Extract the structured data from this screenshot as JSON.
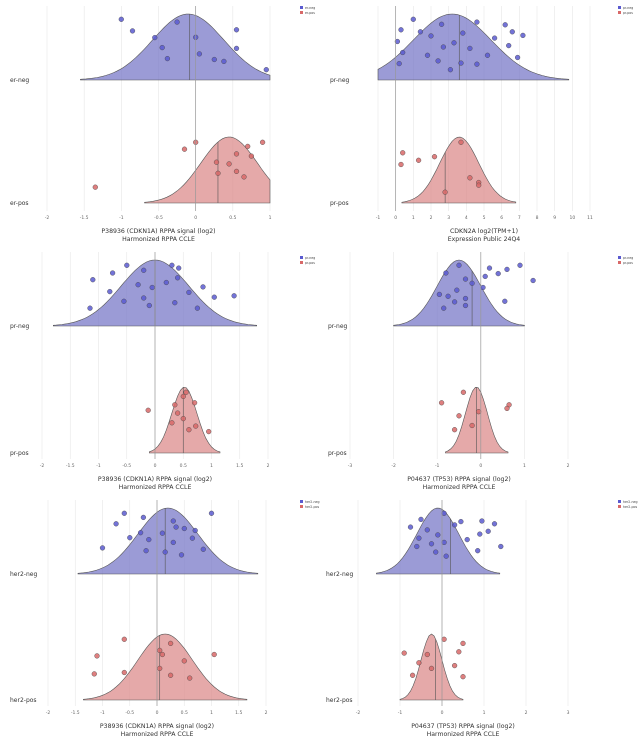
{
  "colors": {
    "neg": "#7a7ac8",
    "pos": "#dc8c8c",
    "neg_point": "#5a5ad0",
    "pos_point": "#d86868",
    "outline": "#555555",
    "grid": "#e6e6e6",
    "zero_line": "#999999"
  },
  "chart_data": [
    {
      "type": "violin",
      "xlabel": "P38936 (CDKN1A) RPPA signal (log2)",
      "subtitle": "Harmonized RPPA CCLE",
      "xlim": [
        -2,
        1
      ],
      "ticks": [
        -2,
        -1.5,
        -1,
        -0.5,
        0,
        0.5,
        1
      ],
      "tick_labels": [
        "-2",
        "-1.5",
        "-1",
        "-0.5",
        "0",
        "0.5",
        "1"
      ],
      "zero": 0,
      "legend": [
        "er-neg",
        "er-pos"
      ],
      "groups": [
        {
          "label": "er-neg",
          "kind": "neg",
          "mode": -0.1,
          "width": 0.48,
          "median": -0.08,
          "points": [
            [
              -1.0,
              1.0
            ],
            [
              -0.25,
              0.9
            ],
            [
              0.55,
              0.62
            ],
            [
              -0.85,
              0.58
            ],
            [
              -0.55,
              0.34
            ],
            [
              0.0,
              0.35
            ],
            [
              0.55,
              -0.05
            ],
            [
              -0.45,
              -0.02
            ],
            [
              0.05,
              -0.25
            ],
            [
              -0.38,
              -0.42
            ],
            [
              0.25,
              -0.45
            ],
            [
              0.38,
              -0.52
            ],
            [
              0.95,
              -0.82
            ]
          ]
        },
        {
          "label": "er-pos",
          "kind": "pos",
          "mode": 0.45,
          "width": 0.38,
          "median": 0.3,
          "points": [
            [
              0.0,
              1.0
            ],
            [
              0.9,
              1.0
            ],
            [
              0.7,
              0.85
            ],
            [
              -0.15,
              0.75
            ],
            [
              0.55,
              0.58
            ],
            [
              0.75,
              0.5
            ],
            [
              0.28,
              0.28
            ],
            [
              0.45,
              0.22
            ],
            [
              0.55,
              -0.05
            ],
            [
              0.3,
              -0.12
            ],
            [
              0.65,
              -0.25
            ],
            [
              -1.35,
              -0.62
            ]
          ]
        }
      ]
    },
    {
      "type": "violin",
      "xlabel": "CDKN2A log2(TPM+1)",
      "subtitle": "Expression Public 24Q4",
      "xlim": [
        -1,
        11
      ],
      "ticks": [
        -1,
        0,
        1,
        2,
        3,
        4,
        5,
        6,
        7,
        8,
        9,
        10,
        11
      ],
      "tick_labels": [
        "-1",
        "0",
        "1",
        "2",
        "3",
        "4",
        "5",
        "6",
        "7",
        "8",
        "9",
        "10",
        "11"
      ],
      "zero": 0,
      "legend": [
        "pr-neg",
        "pr-pos"
      ],
      "groups": [
        {
          "label": "pr-neg",
          "kind": "neg",
          "mode": 3.2,
          "width": 2.2,
          "median": 3.6,
          "points": [
            [
              1.0,
              1.0
            ],
            [
              2.6,
              0.82
            ],
            [
              4.6,
              0.9
            ],
            [
              6.2,
              0.8
            ],
            [
              0.3,
              0.62
            ],
            [
              1.4,
              0.55
            ],
            [
              3.8,
              0.5
            ],
            [
              6.6,
              0.55
            ],
            [
              7.2,
              0.42
            ],
            [
              2.0,
              0.4
            ],
            [
              5.6,
              0.32
            ],
            [
              0.1,
              0.2
            ],
            [
              3.3,
              0.15
            ],
            [
              6.4,
              0.05
            ],
            [
              2.7,
              0.0
            ],
            [
              4.2,
              -0.05
            ],
            [
              0.4,
              -0.2
            ],
            [
              1.8,
              -0.3
            ],
            [
              5.2,
              -0.3
            ],
            [
              6.9,
              -0.38
            ],
            [
              2.4,
              -0.5
            ],
            [
              3.7,
              -0.58
            ],
            [
              4.6,
              -0.62
            ],
            [
              0.2,
              -0.6
            ],
            [
              3.1,
              -0.82
            ]
          ]
        },
        {
          "label": "pr-pos",
          "kind": "pos",
          "mode": 3.6,
          "width": 1.1,
          "median": 2.8,
          "points": [
            [
              3.7,
              1.0
            ],
            [
              0.4,
              0.62
            ],
            [
              2.2,
              0.48
            ],
            [
              1.3,
              0.35
            ],
            [
              0.3,
              0.2
            ],
            [
              4.2,
              -0.28
            ],
            [
              4.7,
              -0.45
            ],
            [
              4.7,
              -0.55
            ],
            [
              2.8,
              -0.8
            ]
          ]
        }
      ]
    },
    {
      "type": "violin",
      "xlabel": "P38936 (CDKN1A) RPPA signal (log2)",
      "subtitle": "Harmonized RPPA CCLE",
      "xlim": [
        -2,
        2
      ],
      "ticks": [
        -2,
        -1.5,
        -1,
        -0.5,
        0,
        0.5,
        1,
        1.5,
        2
      ],
      "tick_labels": [
        "-2",
        "-1.5",
        "-1",
        "-0.5",
        "0",
        "0.5",
        "1",
        "1.5",
        "2"
      ],
      "zero": 0,
      "legend": [
        "pr-neg",
        "pr-pos"
      ],
      "groups": [
        {
          "label": "pr-neg",
          "kind": "neg",
          "mode": 0.0,
          "width": 0.6,
          "median": 0.0,
          "points": [
            [
              -0.5,
              1.0
            ],
            [
              0.3,
              1.0
            ],
            [
              0.42,
              0.9
            ],
            [
              -0.2,
              0.82
            ],
            [
              -0.75,
              0.72
            ],
            [
              0.4,
              0.55
            ],
            [
              -1.1,
              0.48
            ],
            [
              0.2,
              0.38
            ],
            [
              -0.3,
              0.3
            ],
            [
              0.85,
              0.22
            ],
            [
              -0.05,
              0.2
            ],
            [
              -0.8,
              0.05
            ],
            [
              0.6,
              0.02
            ],
            [
              1.4,
              -0.1
            ],
            [
              1.05,
              -0.15
            ],
            [
              -0.2,
              -0.18
            ],
            [
              -0.55,
              -0.3
            ],
            [
              0.35,
              -0.35
            ],
            [
              -0.1,
              -0.45
            ],
            [
              -1.15,
              -0.55
            ],
            [
              0.75,
              -0.55
            ]
          ]
        },
        {
          "label": "pr-pos",
          "kind": "pos",
          "mode": 0.52,
          "width": 0.22,
          "median": 0.5,
          "points": [
            [
              0.55,
              1.0
            ],
            [
              0.5,
              0.85
            ],
            [
              0.7,
              0.62
            ],
            [
              0.35,
              0.55
            ],
            [
              -0.12,
              0.35
            ],
            [
              0.4,
              0.25
            ],
            [
              0.5,
              0.05
            ],
            [
              0.3,
              -0.1
            ],
            [
              0.72,
              -0.22
            ],
            [
              0.6,
              -0.35
            ],
            [
              0.95,
              -0.42
            ]
          ]
        }
      ]
    },
    {
      "type": "violin",
      "xlabel": "P04637 (TP53) RPPA signal (log2)",
      "subtitle": "Harmonized RPPA CCLE",
      "xlim": [
        -3,
        2
      ],
      "ticks": [
        -3,
        -2,
        -1,
        0,
        1,
        2
      ],
      "tick_labels": [
        "-3",
        "-2",
        "-1",
        "0",
        "1",
        "2"
      ],
      "zero": 0,
      "legend": [
        "pr-neg",
        "pr-pos"
      ],
      "groups": [
        {
          "label": "pr-neg",
          "kind": "neg",
          "mode": -0.5,
          "width": 0.5,
          "median": -0.2,
          "points": [
            [
              -0.5,
              1.0
            ],
            [
              0.9,
              1.0
            ],
            [
              0.2,
              0.9
            ],
            [
              0.6,
              0.85
            ],
            [
              -0.8,
              0.72
            ],
            [
              0.4,
              0.7
            ],
            [
              0.1,
              0.6
            ],
            [
              -0.35,
              0.5
            ],
            [
              1.2,
              0.45
            ],
            [
              -0.2,
              0.35
            ],
            [
              0.05,
              0.2
            ],
            [
              -0.55,
              0.1
            ],
            [
              -0.95,
              -0.05
            ],
            [
              -0.75,
              -0.12
            ],
            [
              -0.35,
              -0.2
            ],
            [
              -0.6,
              -0.32
            ],
            [
              -0.35,
              -0.45
            ],
            [
              0.55,
              -0.3
            ],
            [
              -0.85,
              -0.55
            ]
          ]
        },
        {
          "label": "pr-pos",
          "kind": "pos",
          "mode": -0.1,
          "width": 0.25,
          "median": -0.1,
          "points": [
            [
              -0.4,
              1.0
            ],
            [
              -0.9,
              0.62
            ],
            [
              0.65,
              0.55
            ],
            [
              0.6,
              0.42
            ],
            [
              -0.05,
              0.3
            ],
            [
              -0.5,
              0.15
            ],
            [
              -0.2,
              -0.2
            ],
            [
              -0.6,
              -0.35
            ]
          ]
        }
      ]
    },
    {
      "type": "violin",
      "xlabel": "P38936 (CDKN1A) RPPA signal (log2)",
      "subtitle": "Harmonized RPPA CCLE",
      "xlim": [
        -2,
        2
      ],
      "ticks": [
        -2,
        -1.5,
        -1,
        -0.5,
        0,
        0.5,
        1,
        1.5,
        2
      ],
      "tick_labels": [
        "-2",
        "-1.5",
        "-1",
        "-0.5",
        "0",
        "0.5",
        "1",
        "1.5",
        "2"
      ],
      "zero": 0,
      "legend": [
        "her2-neg",
        "her2-pos"
      ],
      "groups": [
        {
          "label": "her2-neg",
          "kind": "neg",
          "mode": 0.2,
          "width": 0.55,
          "median": 0.15,
          "points": [
            [
              -0.6,
              1.0
            ],
            [
              1.0,
              1.0
            ],
            [
              -0.25,
              0.85
            ],
            [
              0.3,
              0.72
            ],
            [
              -0.75,
              0.62
            ],
            [
              0.35,
              0.5
            ],
            [
              0.5,
              0.45
            ],
            [
              0.7,
              0.38
            ],
            [
              -0.3,
              0.3
            ],
            [
              0.1,
              0.28
            ],
            [
              -0.5,
              0.12
            ],
            [
              0.65,
              0.1
            ],
            [
              -0.15,
              0.05
            ],
            [
              0.3,
              -0.05
            ],
            [
              -1.0,
              -0.25
            ],
            [
              0.85,
              -0.3
            ],
            [
              -0.2,
              -0.35
            ],
            [
              0.15,
              -0.4
            ],
            [
              0.45,
              -0.5
            ]
          ]
        },
        {
          "label": "her2-pos",
          "kind": "pos",
          "mode": 0.15,
          "width": 0.5,
          "median": 0.05,
          "points": [
            [
              -0.6,
              1.0
            ],
            [
              0.25,
              0.85
            ],
            [
              0.05,
              0.6
            ],
            [
              0.1,
              0.45
            ],
            [
              -1.1,
              0.4
            ],
            [
              1.05,
              0.45
            ],
            [
              0.5,
              0.22
            ],
            [
              0.05,
              -0.05
            ],
            [
              -0.6,
              -0.2
            ],
            [
              -1.15,
              -0.25
            ],
            [
              0.25,
              -0.3
            ],
            [
              0.6,
              -0.4
            ]
          ]
        }
      ]
    },
    {
      "type": "violin",
      "xlabel": "P04637 (TP53) RPPA signal (log2)",
      "subtitle": "Harmonized RPPA CCLE",
      "xlim": [
        -2,
        3
      ],
      "ticks": [
        -2,
        -1,
        0,
        1,
        2,
        3
      ],
      "tick_labels": [
        "-2",
        "-1",
        "0",
        "1",
        "2",
        "3"
      ],
      "zero": 0,
      "legend": [
        "her2-neg",
        "her2-pos"
      ],
      "groups": [
        {
          "label": "her2-neg",
          "kind": "neg",
          "mode": -0.1,
          "width": 0.5,
          "median": 0.2,
          "points": [
            [
              0.05,
              1.0
            ],
            [
              -0.5,
              0.78
            ],
            [
              0.45,
              0.7
            ],
            [
              0.95,
              0.72
            ],
            [
              1.25,
              0.62
            ],
            [
              0.3,
              0.58
            ],
            [
              -0.75,
              0.5
            ],
            [
              -0.35,
              0.4
            ],
            [
              1.1,
              0.35
            ],
            [
              0.9,
              0.25
            ],
            [
              -0.1,
              0.22
            ],
            [
              -0.55,
              0.1
            ],
            [
              0.6,
              0.05
            ],
            [
              0.05,
              -0.05
            ],
            [
              -0.25,
              -0.1
            ],
            [
              -0.6,
              -0.2
            ],
            [
              1.4,
              -0.2
            ],
            [
              0.85,
              -0.35
            ],
            [
              -0.15,
              -0.4
            ],
            [
              0.1,
              -0.55
            ]
          ]
        },
        {
          "label": "her2-pos",
          "kind": "pos",
          "mode": -0.25,
          "width": 0.25,
          "median": -0.15,
          "points": [
            [
              0.05,
              1.0
            ],
            [
              0.5,
              0.85
            ],
            [
              0.4,
              0.55
            ],
            [
              -0.9,
              0.5
            ],
            [
              -0.35,
              0.45
            ],
            [
              -0.55,
              0.15
            ],
            [
              0.3,
              0.05
            ],
            [
              -0.25,
              -0.05
            ],
            [
              -0.7,
              -0.3
            ],
            [
              0.5,
              -0.35
            ]
          ]
        }
      ]
    }
  ]
}
